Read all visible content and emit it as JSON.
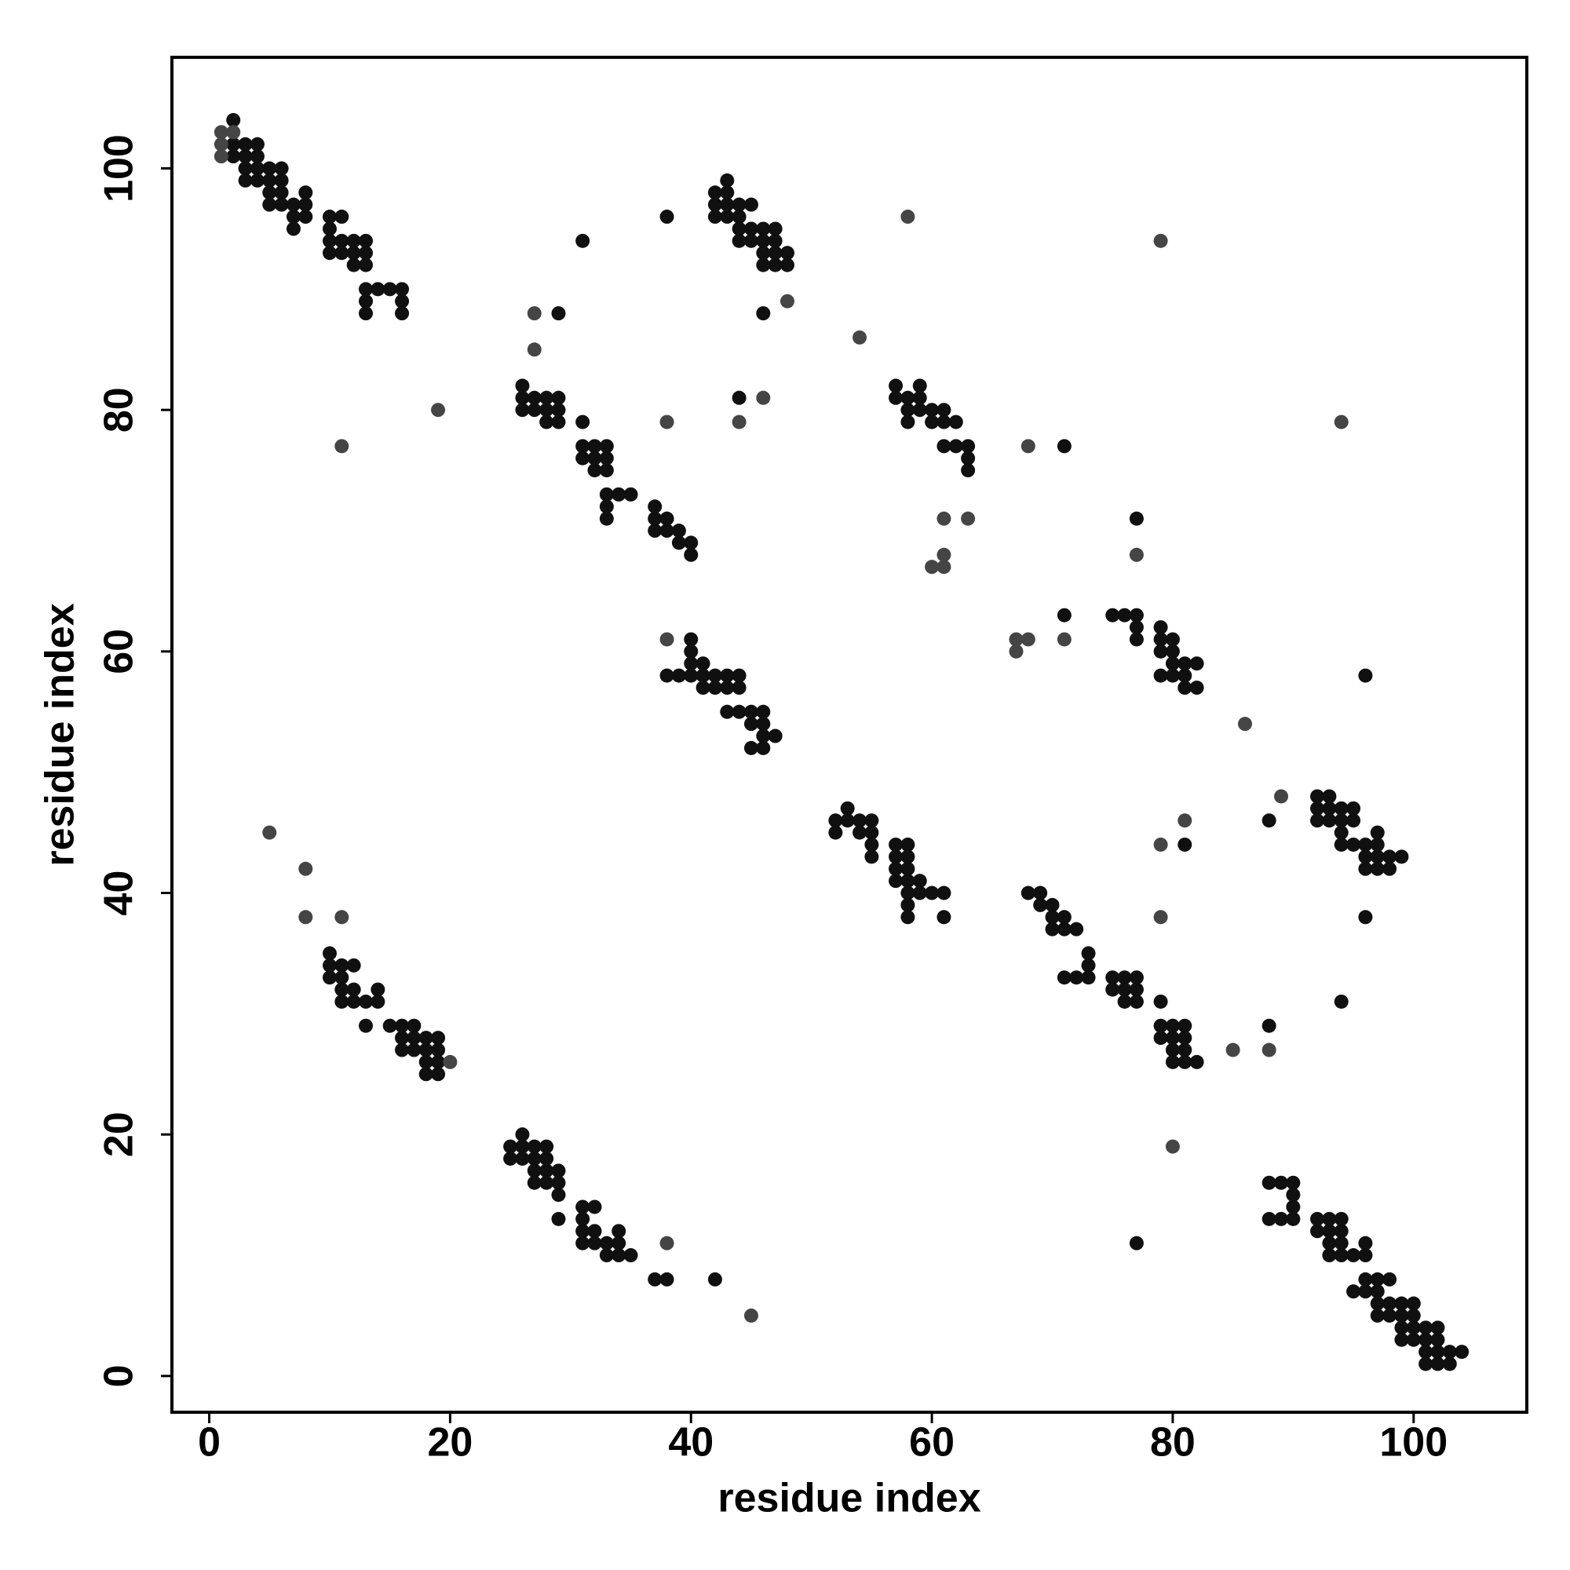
{
  "chart_data": {
    "type": "scatter",
    "x_label": "residue index",
    "y_label": "residue index",
    "xlim": [
      -3.1,
      109.4
    ],
    "ylim": [
      -3,
      109.2
    ],
    "xticks": [
      0,
      20,
      40,
      60,
      80,
      100
    ],
    "yticks": [
      0,
      20,
      40,
      60,
      80,
      100
    ],
    "series": [
      {
        "color": "#101010",
        "x": [
          2,
          2,
          2,
          3,
          3,
          3,
          3,
          4,
          4,
          4,
          4,
          5,
          5,
          5,
          5,
          6,
          6,
          6,
          6,
          7,
          7,
          7,
          8,
          8,
          8,
          10,
          10,
          10,
          10,
          11,
          11,
          11,
          12,
          12,
          12,
          13,
          13,
          13,
          13,
          13,
          13,
          14,
          15,
          16,
          16,
          16,
          26,
          26,
          26,
          27,
          27,
          28,
          28,
          28,
          29,
          29,
          29,
          31,
          31,
          31,
          32,
          32,
          32,
          33,
          33,
          33,
          33,
          33,
          33,
          34,
          35,
          37,
          37,
          37,
          38,
          38,
          39,
          39,
          40,
          40,
          42,
          42,
          42,
          43,
          43,
          43,
          43,
          44,
          44,
          44,
          44,
          45,
          45,
          45,
          46,
          46,
          46,
          46,
          47,
          47,
          47,
          47,
          48,
          48,
          38,
          39,
          40,
          40,
          40,
          40,
          41,
          41,
          41,
          42,
          42,
          43,
          43,
          44,
          44,
          43,
          44,
          45,
          45,
          45,
          46,
          46,
          46,
          46,
          47,
          57,
          57,
          58,
          58,
          58,
          59,
          59,
          59,
          60,
          60,
          61,
          61,
          61,
          62,
          62,
          63,
          63,
          63,
          71,
          75,
          76,
          77,
          77,
          77,
          77,
          79,
          79,
          79,
          79,
          80,
          80,
          80,
          80,
          81,
          81,
          81,
          82,
          82,
          52,
          52,
          53,
          53,
          54,
          54,
          55,
          55,
          55,
          55,
          57,
          57,
          57,
          57,
          58,
          58,
          58,
          58,
          58,
          58,
          58,
          59,
          59,
          60,
          61,
          61,
          68,
          69,
          69,
          70,
          70,
          70,
          71,
          71,
          72,
          71,
          72,
          73,
          73,
          73,
          75,
          75,
          76,
          76,
          76,
          77,
          77,
          77,
          79,
          79,
          79,
          80,
          80,
          80,
          80,
          81,
          81,
          81,
          81,
          82,
          88,
          77,
          81,
          88,
          94,
          92,
          92,
          92,
          93,
          93,
          93,
          94,
          94,
          94,
          94,
          95,
          95,
          95,
          96,
          96,
          96,
          97,
          97,
          97,
          97,
          98,
          98,
          99,
          96,
          96,
          10,
          10,
          10,
          11,
          11,
          11,
          11,
          12,
          12,
          12,
          13,
          13,
          14,
          14,
          15,
          16,
          16,
          16,
          17,
          17,
          17,
          18,
          18,
          18,
          18,
          19,
          19,
          19,
          19,
          25,
          25,
          26,
          26,
          26,
          27,
          27,
          27,
          27,
          28,
          28,
          28,
          28,
          29,
          29,
          29,
          29,
          31,
          31,
          31,
          31,
          32,
          32,
          32,
          33,
          33,
          34,
          34,
          34,
          35,
          37,
          38,
          42,
          88,
          88,
          89,
          89,
          90,
          90,
          90,
          90,
          92,
          92,
          93,
          93,
          93,
          93,
          94,
          94,
          94,
          94,
          95,
          96,
          96,
          95,
          96,
          96,
          97,
          97,
          97,
          97,
          98,
          98,
          98,
          99,
          99,
          99,
          99,
          100,
          100,
          100,
          100,
          101,
          101,
          101,
          101,
          102,
          102,
          102,
          102,
          103,
          103,
          104,
          31,
          38,
          29,
          44,
          46,
          71
        ],
        "values": [
          104,
          102,
          101,
          102,
          101,
          100,
          99,
          102,
          101,
          100,
          99,
          100,
          99,
          98,
          97,
          100,
          99,
          98,
          97,
          97,
          96,
          95,
          98,
          97,
          96,
          96,
          95,
          94,
          93,
          96,
          94,
          93,
          94,
          93,
          92,
          94,
          93,
          92,
          90,
          89,
          88,
          90,
          90,
          90,
          89,
          88,
          82,
          81,
          80,
          81,
          80,
          81,
          80,
          79,
          81,
          80,
          79,
          79,
          77,
          76,
          77,
          76,
          75,
          77,
          76,
          75,
          73,
          72,
          71,
          73,
          73,
          72,
          71,
          70,
          71,
          70,
          70,
          69,
          69,
          68,
          98,
          97,
          96,
          99,
          98,
          97,
          96,
          97,
          96,
          95,
          94,
          97,
          95,
          94,
          95,
          94,
          93,
          92,
          95,
          94,
          93,
          92,
          93,
          92,
          58,
          58,
          61,
          60,
          59,
          58,
          59,
          58,
          57,
          58,
          57,
          58,
          57,
          58,
          57,
          55,
          55,
          55,
          54,
          52,
          55,
          54,
          53,
          52,
          53,
          82,
          81,
          81,
          80,
          79,
          82,
          81,
          80,
          80,
          79,
          80,
          79,
          77,
          79,
          77,
          77,
          76,
          75,
          63,
          63,
          63,
          63,
          62,
          61,
          71,
          62,
          61,
          60,
          58,
          61,
          60,
          59,
          58,
          59,
          58,
          57,
          59,
          57,
          46,
          45,
          47,
          46,
          46,
          45,
          46,
          45,
          44,
          43,
          44,
          43,
          42,
          41,
          44,
          43,
          42,
          41,
          40,
          39,
          38,
          41,
          40,
          40,
          40,
          38,
          40,
          40,
          39,
          39,
          38,
          37,
          38,
          37,
          37,
          33,
          33,
          35,
          34,
          33,
          33,
          32,
          33,
          32,
          31,
          33,
          32,
          31,
          31,
          29,
          28,
          29,
          28,
          27,
          26,
          29,
          28,
          27,
          26,
          26,
          29,
          11,
          44,
          46,
          31,
          48,
          47,
          46,
          48,
          47,
          46,
          47,
          46,
          45,
          44,
          47,
          46,
          44,
          44,
          43,
          42,
          45,
          44,
          43,
          42,
          43,
          42,
          43,
          38,
          58,
          35,
          34,
          33,
          34,
          33,
          32,
          31,
          34,
          32,
          31,
          31,
          29,
          32,
          31,
          29,
          29,
          28,
          27,
          29,
          28,
          27,
          28,
          27,
          26,
          25,
          28,
          27,
          26,
          25,
          19,
          18,
          20,
          19,
          18,
          19,
          18,
          17,
          16,
          19,
          18,
          17,
          16,
          17,
          16,
          15,
          13,
          14,
          13,
          12,
          11,
          14,
          12,
          11,
          11,
          10,
          12,
          11,
          10,
          10,
          8,
          8,
          8,
          16,
          13,
          16,
          13,
          16,
          15,
          14,
          13,
          13,
          12,
          13,
          12,
          11,
          10,
          13,
          12,
          11,
          10,
          10,
          11,
          10,
          7,
          8,
          7,
          8,
          7,
          6,
          5,
          8,
          6,
          5,
          6,
          5,
          4,
          3,
          6,
          5,
          4,
          3,
          4,
          3,
          2,
          1,
          4,
          3,
          2,
          1,
          2,
          1,
          2,
          94,
          96,
          88,
          81,
          88,
          77
        ]
      },
      {
        "color": "#454545",
        "x": [
          11,
          19,
          27,
          27,
          38,
          44,
          46,
          48,
          54,
          58,
          79,
          38,
          63,
          61,
          61,
          61,
          60,
          68,
          67,
          67,
          68,
          71,
          77,
          86,
          94,
          85,
          88,
          80,
          79,
          79,
          81,
          89,
          5,
          8,
          8,
          11,
          20,
          38,
          45,
          1,
          1,
          1,
          2
        ],
        "values": [
          77,
          80,
          88,
          85,
          79,
          79,
          81,
          89,
          86,
          96,
          94,
          61,
          71,
          71,
          68,
          67,
          67,
          77,
          61,
          60,
          61,
          61,
          68,
          54,
          79,
          27,
          27,
          19,
          38,
          44,
          46,
          48,
          45,
          42,
          38,
          38,
          26,
          11,
          5,
          103,
          102,
          101,
          103
        ]
      }
    ]
  }
}
